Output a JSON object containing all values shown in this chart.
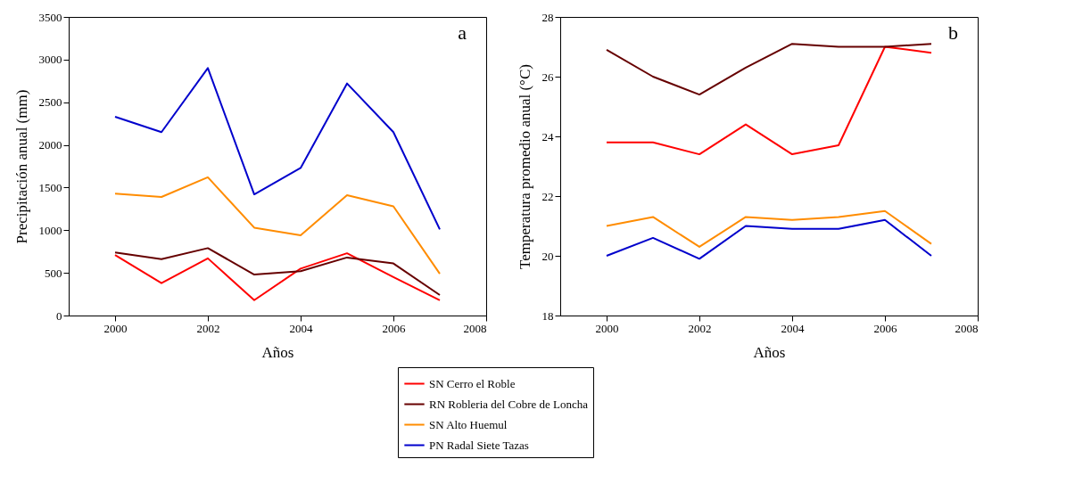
{
  "chart_data": [
    {
      "type": "line",
      "xlabel": "Años",
      "ylabel": "Precipitación anual (mm)",
      "annotations": [
        "a"
      ],
      "x": [
        2000,
        2001,
        2002,
        2003,
        2004,
        2005,
        2006,
        2007
      ],
      "xlim": [
        1999,
        2008
      ],
      "xticks": [
        2000,
        2002,
        2004,
        2006,
        2008
      ],
      "ylim": [
        0,
        3500
      ],
      "yticks": [
        0,
        500,
        1000,
        1500,
        2000,
        2500,
        3000,
        3500
      ],
      "grid": false,
      "legend": "bottom",
      "marker": "none",
      "line_style": "solid",
      "series": [
        {
          "name": "SN Cerro el Roble",
          "color": "#ff0000",
          "values": [
            710,
            380,
            670,
            180,
            550,
            730,
            450,
            180
          ]
        },
        {
          "name": "RN Robleria del Cobre de Loncha",
          "color": "#660000",
          "values": [
            740,
            660,
            790,
            480,
            520,
            680,
            610,
            240
          ]
        },
        {
          "name": "SN Alto Huemul",
          "color": "#ff8c00",
          "values": [
            1430,
            1390,
            1620,
            1030,
            940,
            1410,
            1280,
            490
          ]
        },
        {
          "name": "PN Radal Siete Tazas",
          "color": "#0000cc",
          "values": [
            2330,
            2150,
            2900,
            1420,
            1730,
            2720,
            2150,
            1010
          ]
        }
      ]
    },
    {
      "type": "line",
      "xlabel": "Años",
      "ylabel": "Temperatura promedio  anual (°C)",
      "annotations": [
        "b"
      ],
      "x": [
        2000,
        2001,
        2002,
        2003,
        2004,
        2005,
        2006,
        2007
      ],
      "xlim": [
        1999,
        2008
      ],
      "xticks": [
        2000,
        2002,
        2004,
        2006,
        2008
      ],
      "ylim": [
        18,
        28
      ],
      "yticks": [
        18,
        20,
        22,
        24,
        26,
        28
      ],
      "grid": false,
      "legend": "bottom",
      "marker": "none",
      "line_style": "solid",
      "series": [
        {
          "name": "SN Cerro el Roble",
          "color": "#ff0000",
          "values": [
            23.8,
            23.8,
            23.4,
            24.4,
            23.4,
            23.7,
            27.0,
            26.8
          ]
        },
        {
          "name": "RN Robleria del Cobre de Loncha",
          "color": "#660000",
          "values": [
            26.9,
            26.0,
            25.4,
            26.3,
            27.1,
            27.0,
            27.0,
            27.1
          ]
        },
        {
          "name": "SN Alto Huemul",
          "color": "#ff8c00",
          "values": [
            21.0,
            21.3,
            20.3,
            21.3,
            21.2,
            21.3,
            21.5,
            20.4
          ]
        },
        {
          "name": "PN Radal Siete Tazas",
          "color": "#0000cc",
          "values": [
            20.0,
            20.6,
            19.9,
            21.0,
            20.9,
            20.9,
            21.2,
            20.0
          ]
        }
      ]
    }
  ]
}
